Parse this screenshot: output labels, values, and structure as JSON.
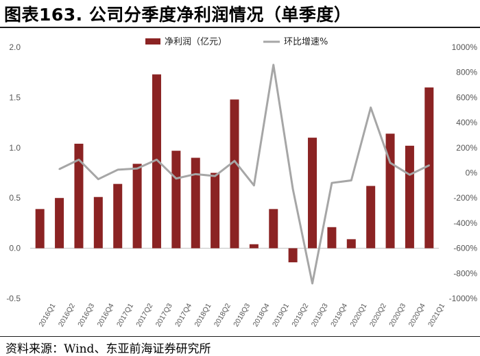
{
  "title": "图表163. 公司分季度净利润情况（单季度）",
  "source": "资料来源：Wind、东亚前海证券研究所",
  "colors": {
    "bar": "#8b2323",
    "line": "#a6a6a6"
  },
  "chart_data": {
    "type": "bar",
    "title": "图表163. 公司分季度净利润情况（单季度）",
    "categories": [
      "2016Q1",
      "2016Q2",
      "2016Q3",
      "2016Q4",
      "2017Q1",
      "2017Q2",
      "2017Q3",
      "2017Q4",
      "2018Q1",
      "2018Q2",
      "2018Q3",
      "2018Q4",
      "2019Q1",
      "2019Q2",
      "2019Q3",
      "2019Q4",
      "2020Q1",
      "2020Q2",
      "2020Q3",
      "2020Q4",
      "2021Q1"
    ],
    "left_axis": {
      "min": -0.5,
      "max": 2.0,
      "ticks": [
        "-0.5",
        "0.0",
        "0.5",
        "1.0",
        "1.5",
        "2.0"
      ],
      "tick_values": [
        -0.5,
        0,
        0.5,
        1.0,
        1.5,
        2.0
      ]
    },
    "right_axis": {
      "min": -1000,
      "max": 1000,
      "ticks": [
        "-1000%",
        "-800%",
        "-600%",
        "-400%",
        "-200%",
        "0%",
        "200%",
        "400%",
        "600%",
        "800%",
        "1000%"
      ],
      "tick_values": [
        -1000,
        -800,
        -600,
        -400,
        -200,
        0,
        200,
        400,
        600,
        800,
        1000
      ]
    },
    "legend_position": "top",
    "series": [
      {
        "name": "净利润（亿元）",
        "type": "bar",
        "axis": "left",
        "values": [
          0.39,
          0.5,
          1.04,
          0.51,
          0.64,
          0.84,
          1.73,
          0.97,
          0.9,
          0.75,
          1.48,
          0.04,
          0.39,
          -0.14,
          1.1,
          0.21,
          0.09,
          0.62,
          1.14,
          1.02,
          1.6
        ]
      },
      {
        "name": "环比增速%",
        "type": "line",
        "axis": "right",
        "values": [
          null,
          30,
          105,
          -50,
          25,
          35,
          105,
          -45,
          -10,
          -25,
          95,
          -100,
          860,
          -130,
          -880,
          -80,
          -60,
          520,
          80,
          -15,
          60
        ]
      }
    ]
  }
}
